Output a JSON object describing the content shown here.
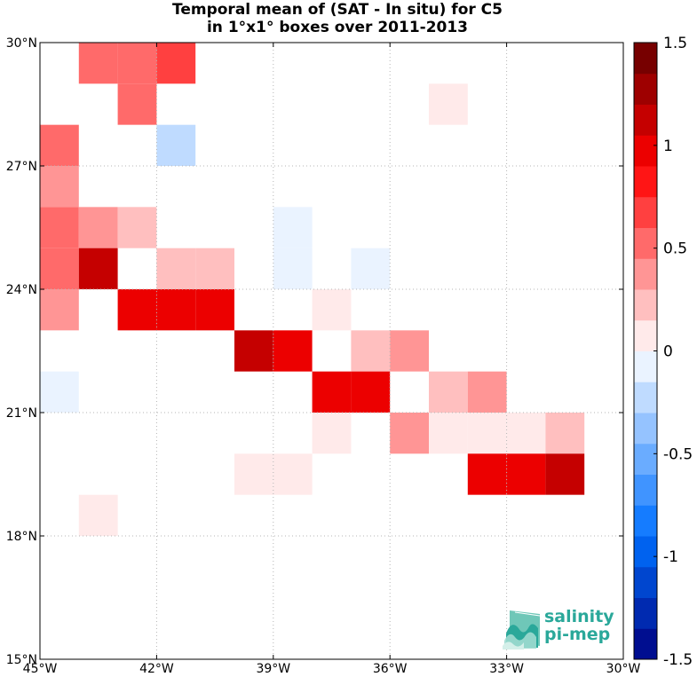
{
  "chart_data": {
    "type": "heatmap",
    "title_line1": "Temporal mean of (SAT - In situ) for C5",
    "title_line2": "in 1°x1° boxes over 2011-2013",
    "xlim": [
      -45,
      -30
    ],
    "ylim": [
      15,
      30
    ],
    "xticks": [
      {
        "value": -45,
        "label": "45°W"
      },
      {
        "value": -42,
        "label": "42°W"
      },
      {
        "value": -39,
        "label": "39°W"
      },
      {
        "value": -36,
        "label": "36°W"
      },
      {
        "value": -33,
        "label": "33°W"
      },
      {
        "value": -30,
        "label": "30°W"
      }
    ],
    "yticks": [
      {
        "value": 15,
        "label": "15°N"
      },
      {
        "value": 18,
        "label": "18°N"
      },
      {
        "value": 21,
        "label": "21°N"
      },
      {
        "value": 24,
        "label": "24°N"
      },
      {
        "value": 27,
        "label": "27°N"
      },
      {
        "value": 30,
        "label": "30°N"
      }
    ],
    "grid": true,
    "colorbar": {
      "min": -1.5,
      "max": 1.5,
      "levels": 20,
      "ticks": [
        {
          "value": 1.5,
          "label": "1.5"
        },
        {
          "value": 1,
          "label": "1"
        },
        {
          "value": 0.5,
          "label": "0.5"
        },
        {
          "value": 0,
          "label": "0"
        },
        {
          "value": -0.5,
          "label": "-0.5"
        },
        {
          "value": -1,
          "label": "-1"
        },
        {
          "value": -1.5,
          "label": "-1.5"
        }
      ]
    },
    "cells": [
      {
        "lon": -44,
        "lat": 29,
        "value": 0.5
      },
      {
        "lon": -43,
        "lat": 29,
        "value": 0.5
      },
      {
        "lon": -43,
        "lat": 28,
        "value": 0.5
      },
      {
        "lon": -42,
        "lat": 29,
        "value": 0.7
      },
      {
        "lon": -35,
        "lat": 28,
        "value": 0.1
      },
      {
        "lon": -45,
        "lat": 27,
        "value": 0.55
      },
      {
        "lon": -42,
        "lat": 27,
        "value": -0.2
      },
      {
        "lon": -45,
        "lat": 26,
        "value": 0.4
      },
      {
        "lon": -45,
        "lat": 25,
        "value": 0.55
      },
      {
        "lon": -44,
        "lat": 25,
        "value": 0.4
      },
      {
        "lon": -43,
        "lat": 25,
        "value": 0.25
      },
      {
        "lon": -39,
        "lat": 25,
        "value": -0.1
      },
      {
        "lon": -45,
        "lat": 24,
        "value": 0.55
      },
      {
        "lon": -44,
        "lat": 24,
        "value": 1.05
      },
      {
        "lon": -42,
        "lat": 24,
        "value": 0.25
      },
      {
        "lon": -41,
        "lat": 24,
        "value": 0.25
      },
      {
        "lon": -39,
        "lat": 24,
        "value": -0.1
      },
      {
        "lon": -37,
        "lat": 24,
        "value": -0.1
      },
      {
        "lon": -45,
        "lat": 23,
        "value": 0.4
      },
      {
        "lon": -43,
        "lat": 23,
        "value": 0.9
      },
      {
        "lon": -42,
        "lat": 23,
        "value": 0.9
      },
      {
        "lon": -41,
        "lat": 23,
        "value": 0.9
      },
      {
        "lon": -38,
        "lat": 23,
        "value": 0.1
      },
      {
        "lon": -40,
        "lat": 22,
        "value": 1.05
      },
      {
        "lon": -39,
        "lat": 22,
        "value": 0.9
      },
      {
        "lon": -37,
        "lat": 22,
        "value": 0.25
      },
      {
        "lon": -36,
        "lat": 22,
        "value": 0.4
      },
      {
        "lon": -45,
        "lat": 21,
        "value": -0.1
      },
      {
        "lon": -38,
        "lat": 21,
        "value": 0.9
      },
      {
        "lon": -37,
        "lat": 21,
        "value": 0.9
      },
      {
        "lon": -35,
        "lat": 21,
        "value": 0.25
      },
      {
        "lon": -34,
        "lat": 21,
        "value": 0.4
      },
      {
        "lon": -38,
        "lat": 20,
        "value": 0.1
      },
      {
        "lon": -36,
        "lat": 20,
        "value": 0.4
      },
      {
        "lon": -35,
        "lat": 20,
        "value": 0.1
      },
      {
        "lon": -34,
        "lat": 20,
        "value": 0.1
      },
      {
        "lon": -33,
        "lat": 20,
        "value": 0.1
      },
      {
        "lon": -32,
        "lat": 20,
        "value": 0.25
      },
      {
        "lon": -40,
        "lat": 19,
        "value": 0.1
      },
      {
        "lon": -39,
        "lat": 19,
        "value": 0.1
      },
      {
        "lon": -34,
        "lat": 19,
        "value": 0.9
      },
      {
        "lon": -33,
        "lat": 19,
        "value": 0.9
      },
      {
        "lon": -32,
        "lat": 19,
        "value": 1.05
      },
      {
        "lon": -44,
        "lat": 18,
        "value": 0.1
      }
    ]
  },
  "logo": {
    "line1": "salinity",
    "line2": "pi-mep"
  }
}
